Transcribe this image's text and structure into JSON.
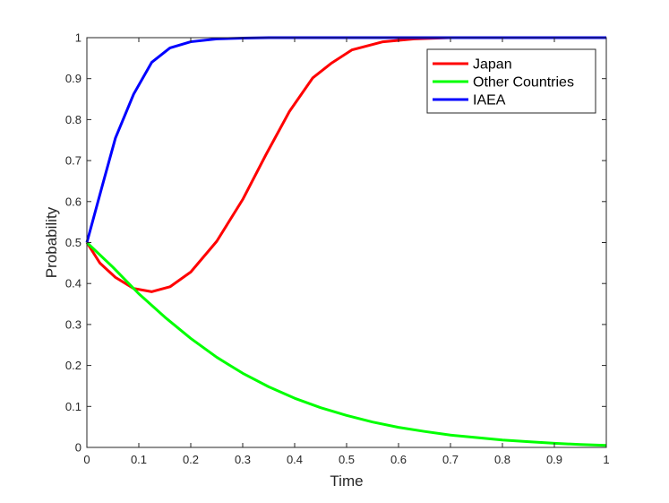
{
  "chart_data": {
    "type": "line",
    "title": "",
    "xlabel": "Time",
    "ylabel": "Probability",
    "xlim": [
      0,
      1
    ],
    "ylim": [
      0,
      1
    ],
    "xticks": [
      0,
      0.1,
      0.2,
      0.3,
      0.4,
      0.5,
      0.6,
      0.7,
      0.8,
      0.9,
      1
    ],
    "xtick_labels": [
      "0",
      "0.1",
      "0.2",
      "0.3",
      "0.4",
      "0.5",
      "0.6",
      "0.7",
      "0.8",
      "0.9",
      "1"
    ],
    "yticks": [
      0,
      0.1,
      0.2,
      0.3,
      0.4,
      0.5,
      0.6,
      0.7,
      0.8,
      0.9,
      1
    ],
    "ytick_labels": [
      "0",
      "0.1",
      "0.2",
      "0.3",
      "0.4",
      "0.5",
      "0.6",
      "0.7",
      "0.8",
      "0.9",
      "1"
    ],
    "grid": false,
    "box": true,
    "legend_position": "top-right",
    "series": [
      {
        "name": "Japan",
        "color": "#ff0000",
        "x": [
          0,
          0.025,
          0.055,
          0.09,
          0.125,
          0.16,
          0.2,
          0.25,
          0.3,
          0.345,
          0.39,
          0.435,
          0.47,
          0.51,
          0.57,
          0.63,
          0.7,
          0.8,
          0.9,
          1
        ],
        "y": [
          0.5,
          0.45,
          0.415,
          0.388,
          0.38,
          0.392,
          0.428,
          0.503,
          0.605,
          0.715,
          0.82,
          0.902,
          0.937,
          0.97,
          0.99,
          0.997,
          1.0,
          1.0,
          1.0,
          1.0
        ]
      },
      {
        "name": "Other Countries",
        "color": "#00ff00",
        "x": [
          0,
          0.05,
          0.1,
          0.15,
          0.2,
          0.25,
          0.3,
          0.35,
          0.4,
          0.45,
          0.5,
          0.55,
          0.6,
          0.65,
          0.7,
          0.75,
          0.8,
          0.85,
          0.9,
          0.95,
          1
        ],
        "y": [
          0.5,
          0.44,
          0.375,
          0.318,
          0.266,
          0.22,
          0.181,
          0.148,
          0.12,
          0.097,
          0.078,
          0.062,
          0.049,
          0.039,
          0.03,
          0.024,
          0.018,
          0.014,
          0.01,
          0.007,
          0.005
        ]
      },
      {
        "name": "IAEA",
        "color": "#0000ff",
        "x": [
          0,
          0.03,
          0.055,
          0.09,
          0.125,
          0.16,
          0.2,
          0.25,
          0.3,
          0.35,
          0.4,
          0.5,
          0.6,
          0.7,
          0.8,
          0.9,
          1
        ],
        "y": [
          0.5,
          0.64,
          0.755,
          0.862,
          0.94,
          0.975,
          0.99,
          0.997,
          0.999,
          1.0,
          1.0,
          1.0,
          1.0,
          1.0,
          1.0,
          1.0,
          1.0
        ]
      }
    ]
  }
}
